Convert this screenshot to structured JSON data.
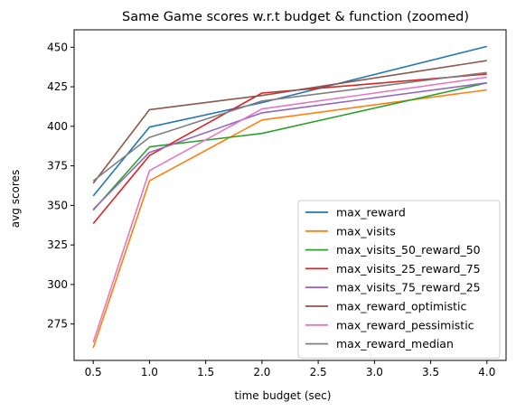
{
  "chart_data": {
    "type": "line",
    "title": "Same Game scores w.r.t budget & function (zoomed)",
    "xlabel": "time budget (sec)",
    "ylabel": "avg scores",
    "xlim": [
      0.33,
      4.17
    ],
    "ylim": [
      252,
      461
    ],
    "xticks": [
      "0.5",
      "1.0",
      "1.5",
      "2.0",
      "2.5",
      "3.0",
      "3.5",
      "4.0"
    ],
    "yticks": [
      "275",
      "300",
      "325",
      "350",
      "375",
      "400",
      "425",
      "450"
    ],
    "grid": false,
    "legend_position": "lower-right",
    "x": [
      0.5,
      1.0,
      2.0,
      4.0
    ],
    "series": [
      {
        "name": "max_reward",
        "color": "#1f77b4",
        "values": [
          356,
          399.5,
          415,
          450.5
        ]
      },
      {
        "name": "max_visits",
        "color": "#ff7f0e",
        "values": [
          260,
          365.5,
          404,
          423
        ]
      },
      {
        "name": "max_visits_50_reward_50",
        "color": "#2ca02c",
        "values": [
          347,
          387,
          395.5,
          427.5
        ]
      },
      {
        "name": "max_visits_25_reward_75",
        "color": "#d62728",
        "values": [
          338.5,
          381.5,
          421,
          433
        ]
      },
      {
        "name": "max_visits_75_reward_25",
        "color": "#9467bd",
        "values": [
          347.5,
          383.5,
          408.5,
          427.5
        ]
      },
      {
        "name": "max_reward_optimistic",
        "color": "#8c564b",
        "values": [
          364,
          410.5,
          419.5,
          441.5
        ]
      },
      {
        "name": "max_reward_pessimistic",
        "color": "#e377c2",
        "values": [
          263.5,
          372,
          411,
          431
        ]
      },
      {
        "name": "max_reward_median",
        "color": "#7f7f7f",
        "values": [
          365.5,
          393,
          416,
          434
        ]
      }
    ]
  }
}
